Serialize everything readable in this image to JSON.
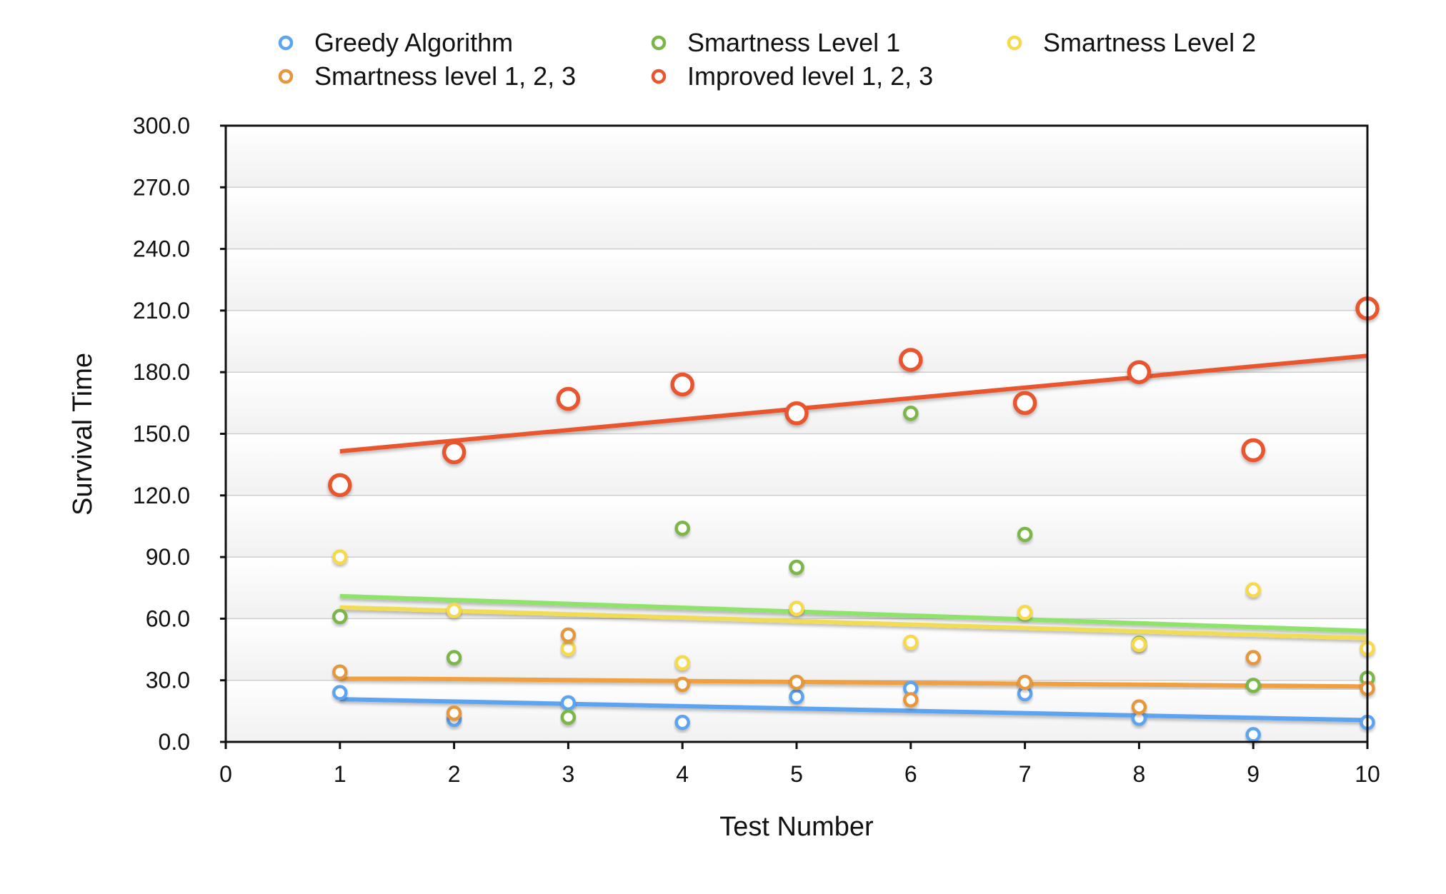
{
  "chart_data": {
    "type": "scatter",
    "xlabel": "Test Number",
    "ylabel": "Survival Time",
    "xlim": [
      0,
      10
    ],
    "ylim": [
      0,
      300
    ],
    "x_ticks": [
      "0",
      "1",
      "2",
      "3",
      "4",
      "5",
      "6",
      "7",
      "8",
      "9",
      "10"
    ],
    "y_ticks": [
      "0.0",
      "30.0",
      "60.0",
      "90.0",
      "120.0",
      "150.0",
      "180.0",
      "210.0",
      "240.0",
      "270.0",
      "300.0"
    ],
    "grid": "horizontal",
    "legend_position": "top",
    "x": [
      1,
      2,
      3,
      4,
      5,
      6,
      7,
      8,
      9,
      10
    ],
    "series": [
      {
        "name": "Greedy Algorithm",
        "color": "#5da4f0",
        "marker": "small",
        "values": [
          24,
          11,
          19,
          9.5,
          22,
          26,
          23.5,
          11.5,
          3.5,
          9.5
        ],
        "trendline": [
          20.8,
          10.6
        ]
      },
      {
        "name": "Smartness Level 1",
        "color": "#7ab648",
        "trend_color": "#8fe36a",
        "marker": "small",
        "values": [
          61,
          41,
          12,
          104,
          85,
          160,
          101,
          48,
          27.5,
          31
        ],
        "trendline": [
          71,
          54
        ]
      },
      {
        "name": "Smartness Level 2",
        "color": "#f7d94c",
        "trend_color": "#f2dc52",
        "marker": "small",
        "values": [
          90,
          64,
          45.5,
          38.5,
          65,
          48.5,
          63,
          47.5,
          74,
          45.5
        ],
        "trendline": [
          65.5,
          50.5
        ]
      },
      {
        "name": "Smartness level 1, 2, 3",
        "color": "#e6963e",
        "trend_color": "#f0a040",
        "marker": "small",
        "values": [
          34,
          14,
          52,
          28,
          29,
          20.5,
          29,
          17,
          41,
          26
        ],
        "trendline": [
          31,
          27
        ]
      },
      {
        "name": "Improved level 1, 2, 3",
        "color": "#e9552d",
        "marker": "large",
        "values": [
          125,
          141,
          167,
          174,
          160,
          186,
          165,
          180,
          142,
          211
        ],
        "trendline": [
          141.5,
          188
        ]
      }
    ]
  }
}
